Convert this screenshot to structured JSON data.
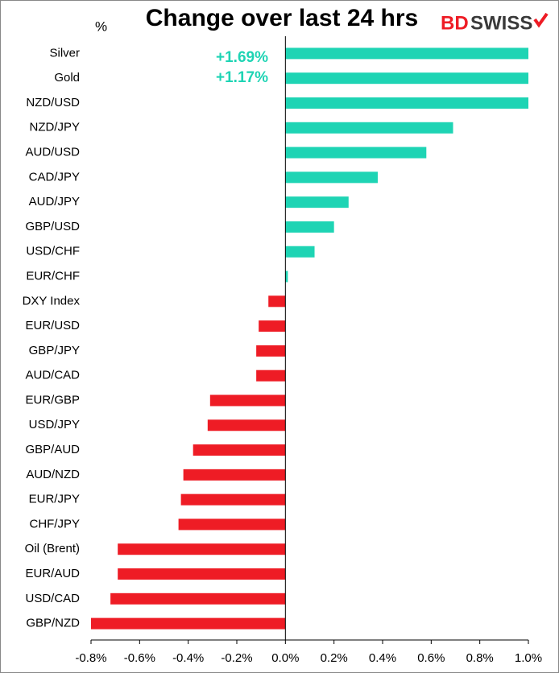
{
  "chart_data": {
    "type": "barh",
    "title": "Change over last 24 hrs",
    "unit_label": "%",
    "logo_parts": [
      "BD",
      "SWISS"
    ],
    "categories": [
      "Silver",
      "Gold",
      "NZD/USD",
      "NZD/JPY",
      "AUD/USD",
      "CAD/JPY",
      "AUD/JPY",
      "GBP/USD",
      "USD/CHF",
      "EUR/CHF",
      "DXY Index",
      "EUR/USD",
      "GBP/JPY",
      "AUD/CAD",
      "EUR/GBP",
      "USD/JPY",
      "GBP/AUD",
      "AUD/NZD",
      "EUR/JPY",
      "CHF/JPY",
      "Oil (Brent)",
      "EUR/AUD",
      "USD/CAD",
      "GBP/NZD"
    ],
    "values": [
      1.69,
      1.17,
      1.0,
      0.69,
      0.58,
      0.38,
      0.26,
      0.2,
      0.12,
      0.01,
      -0.07,
      -0.11,
      -0.12,
      -0.12,
      -0.31,
      -0.32,
      -0.38,
      -0.42,
      -0.43,
      -0.44,
      -0.69,
      -0.69,
      -0.72,
      -0.8
    ],
    "value_labels": [
      "+1.69%",
      "+1.17%",
      null,
      null,
      null,
      null,
      null,
      null,
      null,
      null,
      null,
      null,
      null,
      null,
      null,
      null,
      null,
      null,
      null,
      null,
      null,
      null,
      null,
      null
    ],
    "positive_color": "#1ed4b4",
    "negative_color": "#ee1c25",
    "xlim": [
      -0.8,
      1.0
    ],
    "xticks": [
      {
        "value": -0.8,
        "label": "-0.8%"
      },
      {
        "value": -0.6,
        "label": "-0.6%"
      },
      {
        "value": -0.4,
        "label": "-0.4%"
      },
      {
        "value": -0.2,
        "label": "-0.2%"
      },
      {
        "value": 0,
        "label": "0.0%"
      },
      {
        "value": 0.2,
        "label": "0.2%"
      },
      {
        "value": 0.4,
        "label": "0.4%"
      },
      {
        "value": 0.6,
        "label": "0.6%"
      },
      {
        "value": 0.8,
        "label": "0.8%"
      },
      {
        "value": 1.0,
        "label": "1.0%"
      }
    ],
    "grid": false
  }
}
